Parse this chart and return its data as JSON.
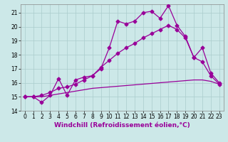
{
  "title": "",
  "xlabel": "Windchill (Refroidissement éolien,°C)",
  "ylabel": "",
  "bg_color": "#cce8e8",
  "grid_color": "#aacccc",
  "line_color": "#990099",
  "xlim": [
    -0.5,
    23.5
  ],
  "ylim": [
    14,
    21.6
  ],
  "xticks": [
    0,
    1,
    2,
    3,
    4,
    5,
    6,
    7,
    8,
    9,
    10,
    11,
    12,
    13,
    14,
    15,
    16,
    17,
    18,
    19,
    20,
    21,
    22,
    23
  ],
  "yticks": [
    14,
    15,
    16,
    17,
    18,
    19,
    20,
    21
  ],
  "series1_x": [
    0,
    1,
    2,
    3,
    4,
    5,
    6,
    7,
    8,
    9,
    10,
    11,
    12,
    13,
    14,
    15,
    16,
    17,
    18,
    19,
    20,
    21,
    22,
    23
  ],
  "series1_y": [
    15.0,
    15.0,
    14.6,
    15.1,
    16.3,
    15.1,
    16.2,
    16.4,
    16.5,
    17.0,
    18.5,
    20.4,
    20.2,
    20.4,
    21.0,
    21.1,
    20.6,
    21.5,
    20.1,
    19.3,
    17.8,
    18.5,
    16.7,
    16.0
  ],
  "series2_x": [
    0,
    1,
    2,
    3,
    4,
    5,
    6,
    7,
    8,
    9,
    10,
    11,
    12,
    13,
    14,
    15,
    16,
    17,
    18,
    19,
    20,
    21,
    22,
    23
  ],
  "series2_y": [
    15.0,
    15.0,
    15.1,
    15.3,
    15.6,
    15.7,
    15.9,
    16.2,
    16.5,
    17.1,
    17.6,
    18.1,
    18.5,
    18.8,
    19.2,
    19.5,
    19.8,
    20.1,
    19.8,
    19.2,
    17.8,
    17.5,
    16.5,
    15.9
  ],
  "series3_x": [
    0,
    1,
    2,
    3,
    4,
    5,
    6,
    7,
    8,
    9,
    10,
    11,
    12,
    13,
    14,
    15,
    16,
    17,
    18,
    19,
    20,
    21,
    22,
    23
  ],
  "series3_y": [
    15.0,
    15.0,
    15.0,
    15.1,
    15.2,
    15.3,
    15.4,
    15.5,
    15.6,
    15.65,
    15.7,
    15.75,
    15.8,
    15.85,
    15.9,
    15.95,
    16.0,
    16.05,
    16.1,
    16.15,
    16.2,
    16.2,
    16.1,
    15.9
  ],
  "marker_size": 2.5,
  "linewidth": 0.9,
  "xlabel_fontsize": 6.5,
  "tick_fontsize": 5.5
}
